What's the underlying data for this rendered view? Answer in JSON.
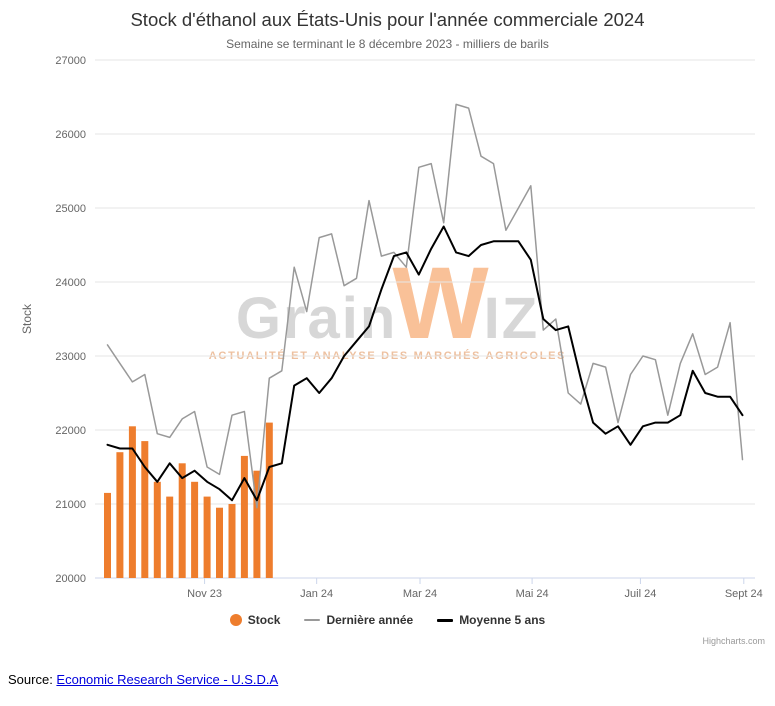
{
  "title": "Stock d'éthanol aux États-Unis pour l'année commerciale 2024",
  "subtitle": "Semaine se terminant le 8 décembre 2023 - milliers de barils",
  "watermark": {
    "part1": "Grain",
    "part2": "W",
    "part3": "IZ",
    "tagline": "ACTUALITÉ ET ANALYSE DES MARCHÉS AGRICOLES"
  },
  "credits_label": "Highcharts.com",
  "source": {
    "prefix": "Source: ",
    "link_text": "Economic Research Service - U.S.D.A"
  },
  "legend": {
    "items": [
      {
        "label": "Stock",
        "marker": "circle",
        "color": "#ee7d2d",
        "thickness": 12
      },
      {
        "label": "Dernière année",
        "marker": "line",
        "color": "#999999",
        "thickness": 2
      },
      {
        "label": "Moyenne 5 ans",
        "marker": "line",
        "color": "#000000",
        "thickness": 3
      }
    ]
  },
  "chart_data": {
    "type": "combo",
    "title": "Stock d'éthanol aux États-Unis pour l'année commerciale 2024",
    "subtitle": "Semaine se terminant le 8 décembre 2023 - milliers de barils",
    "ylabel": "Stock",
    "xlabel": "",
    "ylim": [
      20000,
      27000
    ],
    "ytick_interval": 1000,
    "grid": "horizontal",
    "legend_position": "bottom",
    "x_unit": "week of commercial year (Sept 2023 - Sept 2024)",
    "x_weeks_max": 53,
    "xticks": [
      {
        "label": "Nov 23",
        "week": 8.8
      },
      {
        "label": "Jan 24",
        "week": 17.8
      },
      {
        "label": "Mar 24",
        "week": 26.1
      },
      {
        "label": "Mai 24",
        "week": 35.1
      },
      {
        "label": "Juil 24",
        "week": 43.8
      },
      {
        "label": "Sept 24",
        "week": 52.1
      }
    ],
    "series": [
      {
        "name": "Stock",
        "type": "column",
        "color": "#ee7d2d",
        "start_week": 1,
        "values": [
          21150,
          21700,
          22050,
          21850,
          21300,
          21100,
          21550,
          21300,
          21100,
          20950,
          21000,
          21650,
          21450,
          22100
        ]
      },
      {
        "name": "Dernière année",
        "type": "line",
        "color": "#999999",
        "line_width": 1.5,
        "start_week": 1,
        "values": [
          23150,
          22900,
          22650,
          22750,
          21950,
          21900,
          22150,
          22250,
          21500,
          21400,
          22200,
          22250,
          20950,
          22700,
          22800,
          24200,
          23600,
          24600,
          24650,
          23950,
          24050,
          25100,
          24350,
          24400,
          24200,
          25550,
          25600,
          24800,
          26400,
          26350,
          25700,
          25600,
          24700,
          25000,
          25300,
          23350,
          23500,
          22500,
          22350,
          22900,
          22850,
          22100,
          22750,
          23000,
          22950,
          22200,
          22900,
          23300,
          22750,
          22850,
          23450,
          21600
        ]
      },
      {
        "name": "Moyenne 5 ans",
        "type": "line",
        "color": "#000000",
        "line_width": 2,
        "start_week": 1,
        "values": [
          21800,
          21750,
          21750,
          21500,
          21300,
          21550,
          21350,
          21450,
          21300,
          21200,
          21050,
          21350,
          21050,
          21500,
          21550,
          22600,
          22700,
          22500,
          22700,
          23000,
          23200,
          23400,
          23900,
          24350,
          24400,
          24100,
          24450,
          24750,
          24400,
          24350,
          24500,
          24550,
          24550,
          24550,
          24300,
          23500,
          23350,
          23400,
          22700,
          22100,
          21950,
          22050,
          21800,
          22050,
          22100,
          22100,
          22200,
          22800,
          22500,
          22450,
          22450,
          22200
        ]
      }
    ]
  }
}
